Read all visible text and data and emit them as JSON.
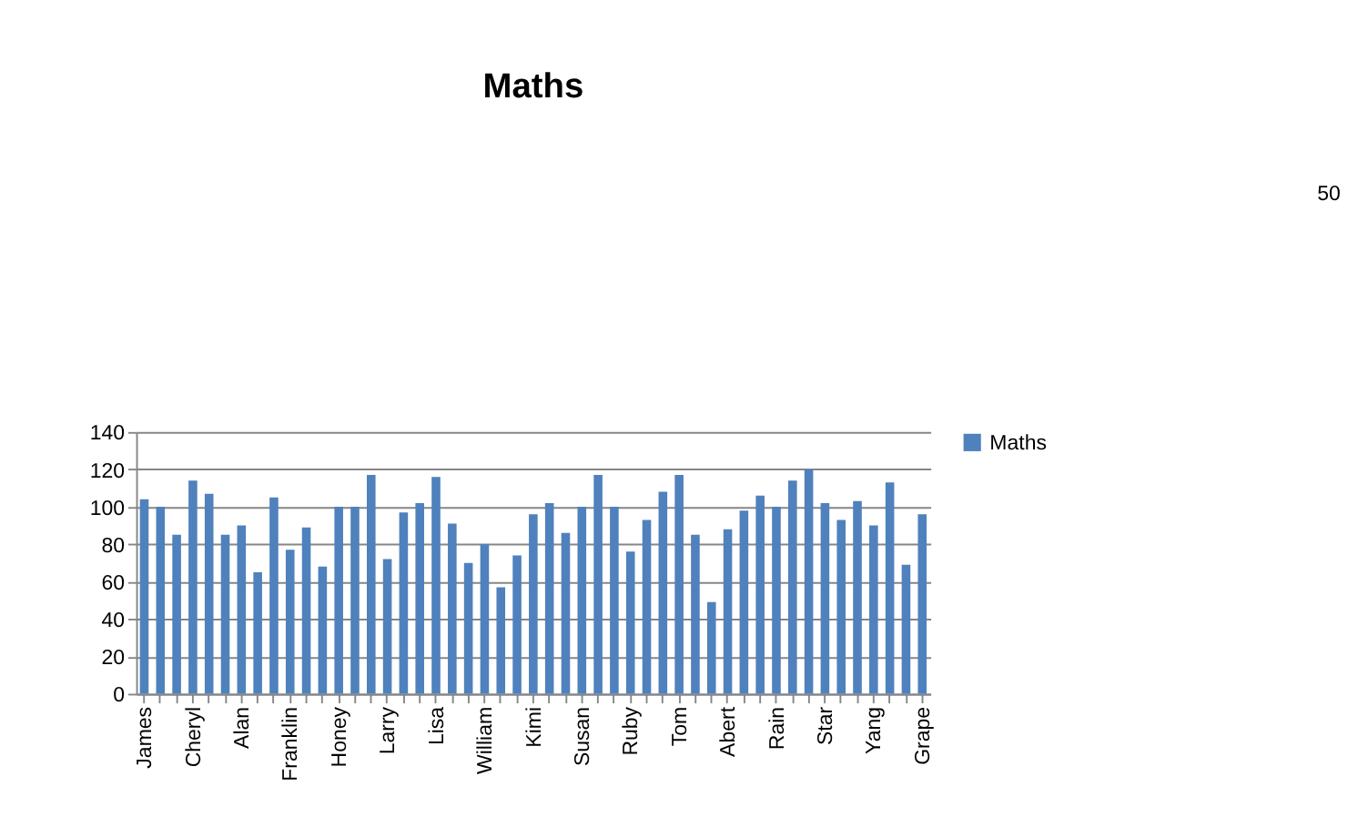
{
  "chart_data": {
    "type": "bar",
    "title": "Maths",
    "categories": [
      "James",
      null,
      null,
      "Cheryl",
      null,
      null,
      "Alan",
      null,
      null,
      "Franklin",
      null,
      null,
      "Honey",
      null,
      null,
      "Larry",
      null,
      null,
      "Lisa",
      null,
      null,
      "William",
      null,
      null,
      "Kimi",
      null,
      null,
      "Susan",
      null,
      null,
      "Ruby",
      null,
      null,
      "Tom",
      null,
      null,
      "Abert",
      null,
      null,
      "Rain",
      null,
      null,
      "Star",
      null,
      null,
      "Yang",
      null,
      null,
      "Grape"
    ],
    "series": [
      {
        "name": "Maths",
        "color": "#4f81bd",
        "values": [
          104,
          100,
          85,
          114,
          107,
          85,
          90,
          65,
          105,
          77,
          89,
          68,
          100,
          100,
          117,
          72,
          97,
          102,
          116,
          91,
          70,
          80,
          57,
          74,
          96,
          102,
          86,
          100,
          117,
          100,
          76,
          93,
          108,
          117,
          85,
          49,
          88,
          98,
          106,
          100,
          114,
          120,
          102,
          93,
          103,
          90,
          113,
          69,
          96
        ]
      }
    ],
    "ylim": [
      0,
      140
    ],
    "yticks": [
      0,
      20,
      40,
      60,
      80,
      100,
      120,
      140
    ],
    "grid": "y",
    "legend": "right",
    "annotations": [
      "50"
    ]
  }
}
